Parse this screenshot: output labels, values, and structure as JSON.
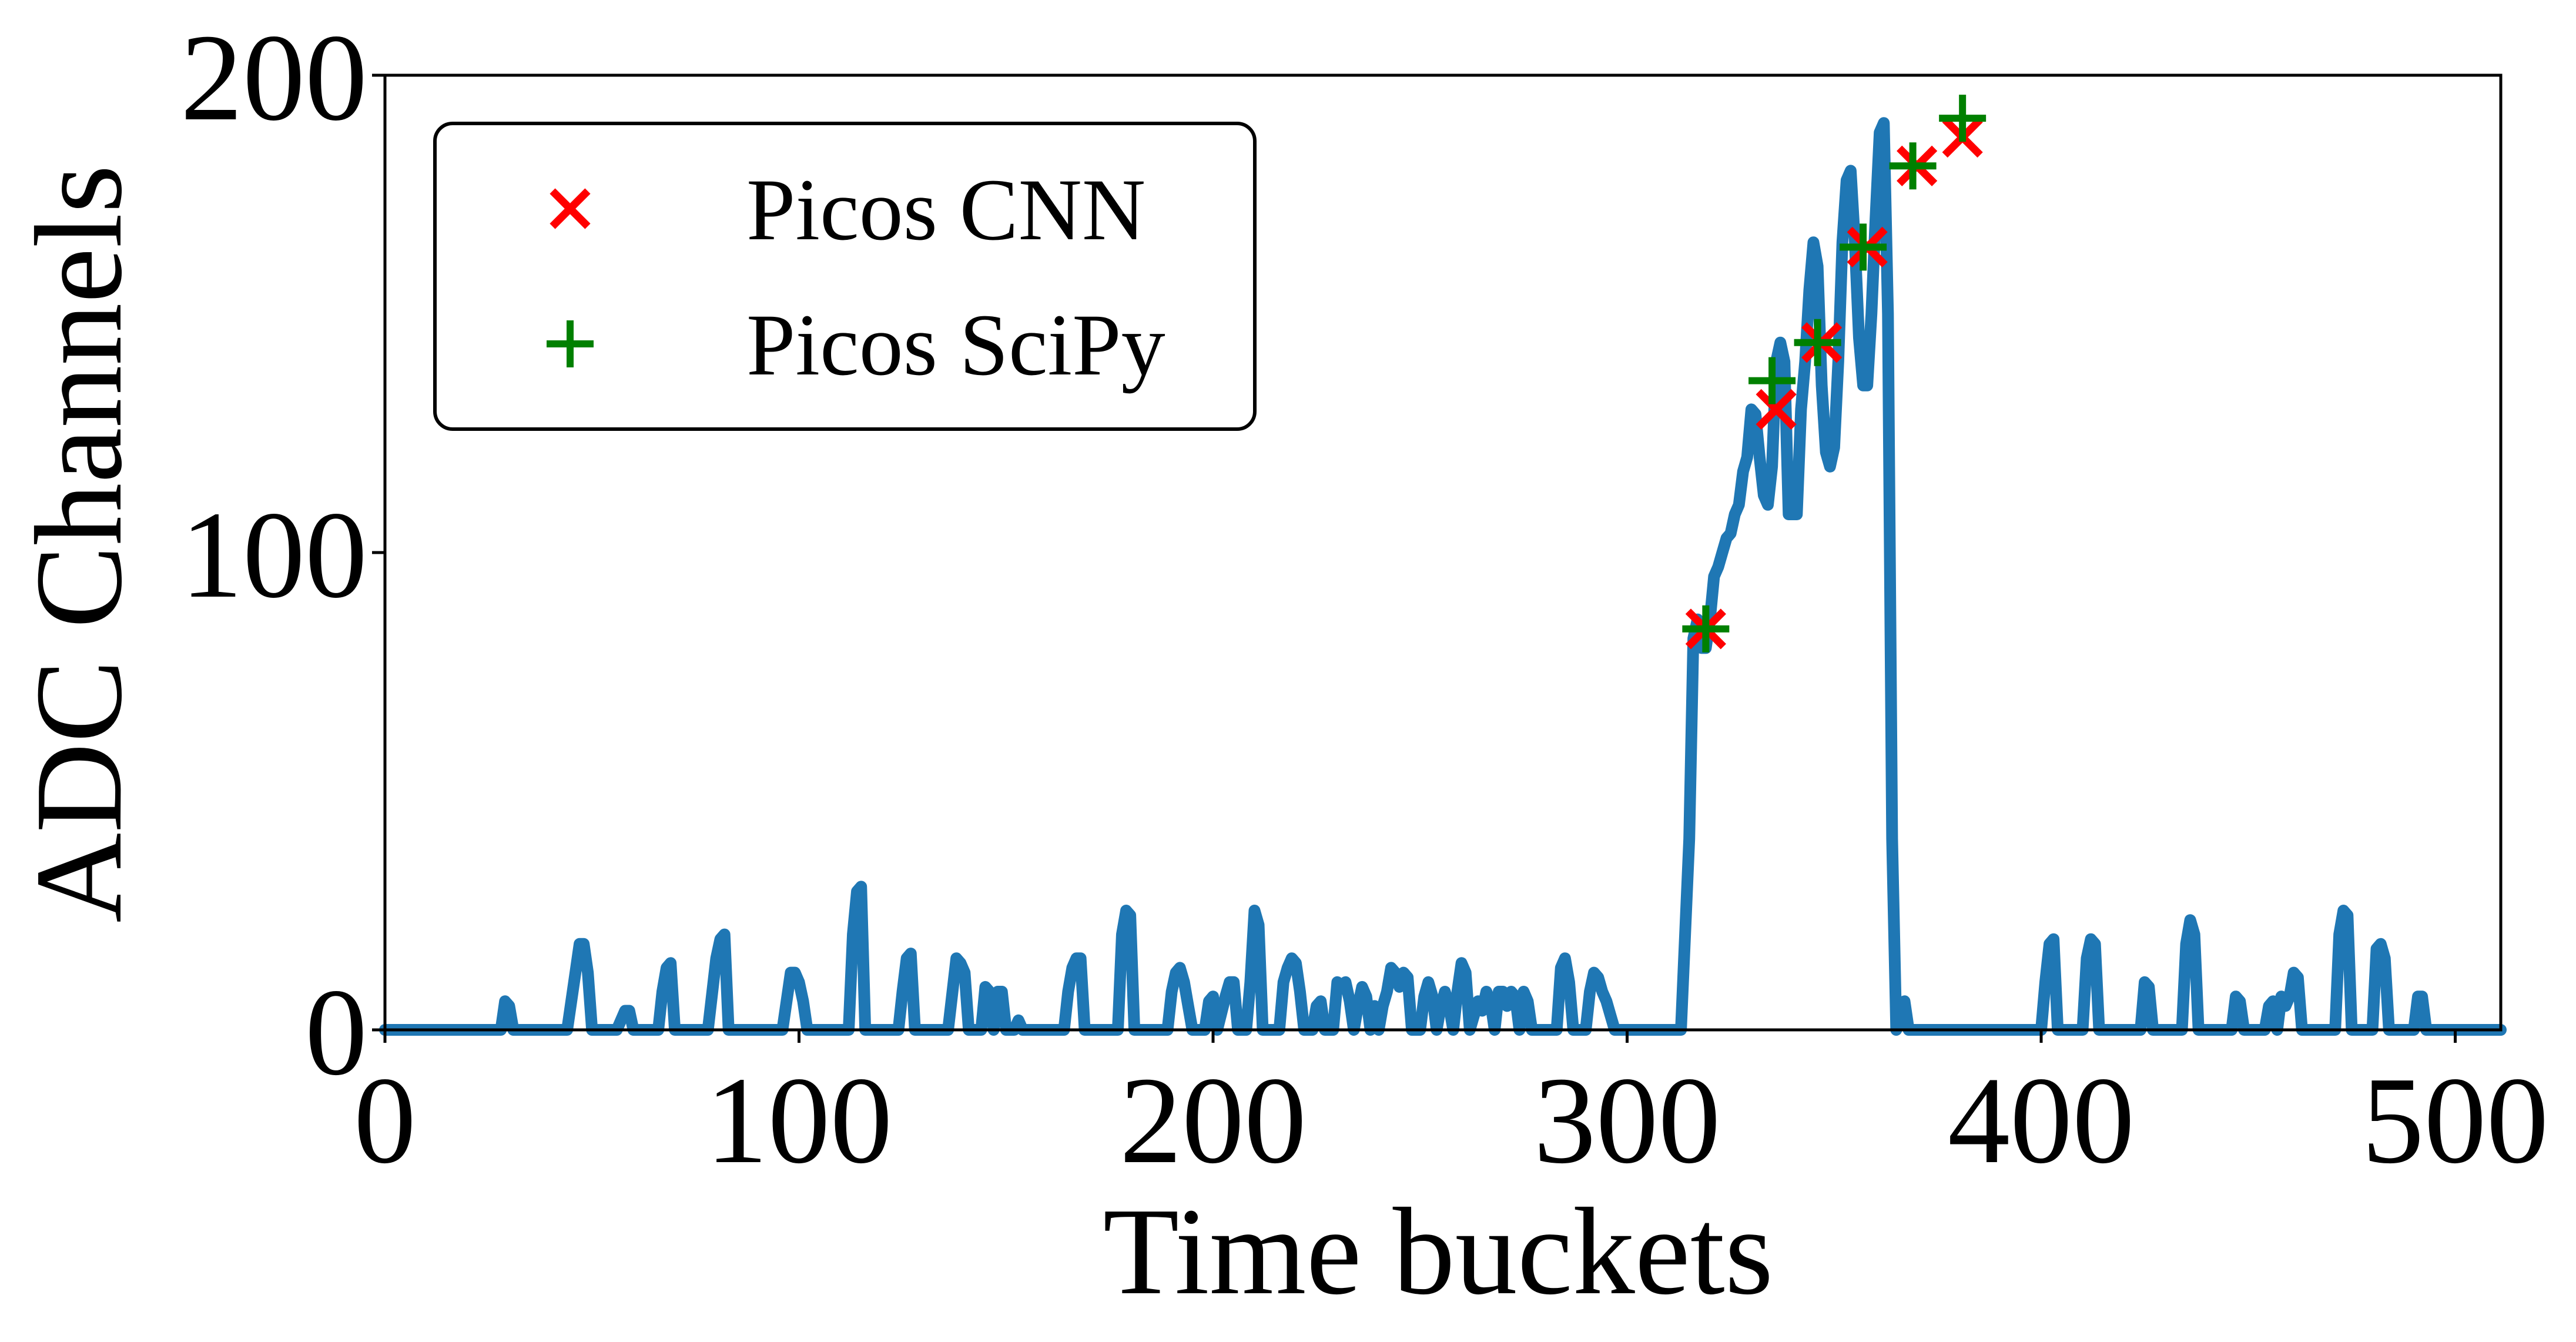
{
  "chart_data": {
    "type": "line",
    "title": "",
    "xlabel": "Time buckets",
    "ylabel": "ADC Channels",
    "xlim": [
      0,
      511
    ],
    "ylim": [
      0,
      200
    ],
    "xticks": [
      0,
      100,
      200,
      300,
      400,
      500
    ],
    "yticks": [
      0,
      100,
      200
    ],
    "grid": false,
    "legend_position": "top-left",
    "series": [
      {
        "kind": "line",
        "color": "#1f77b4",
        "points": [
          [
            0,
            0
          ],
          [
            28,
            0
          ],
          [
            29,
            6
          ],
          [
            30,
            5
          ],
          [
            31,
            0
          ],
          [
            44,
            0
          ],
          [
            46,
            12
          ],
          [
            47,
            18
          ],
          [
            48,
            18
          ],
          [
            49,
            12
          ],
          [
            50,
            0
          ],
          [
            56,
            0
          ],
          [
            58,
            4
          ],
          [
            59,
            4
          ],
          [
            60,
            0
          ],
          [
            66,
            0
          ],
          [
            67,
            8
          ],
          [
            68,
            13
          ],
          [
            69,
            14
          ],
          [
            70,
            0
          ],
          [
            78,
            0
          ],
          [
            80,
            15
          ],
          [
            81,
            19
          ],
          [
            82,
            20
          ],
          [
            83,
            0
          ],
          [
            96,
            0
          ],
          [
            98,
            12
          ],
          [
            99,
            12
          ],
          [
            100,
            10
          ],
          [
            101,
            6
          ],
          [
            102,
            0
          ],
          [
            112,
            0
          ],
          [
            113,
            20
          ],
          [
            114,
            29
          ],
          [
            115,
            30
          ],
          [
            116,
            0
          ],
          [
            124,
            0
          ],
          [
            125,
            8
          ],
          [
            126,
            15
          ],
          [
            127,
            16
          ],
          [
            128,
            0
          ],
          [
            136,
            0
          ],
          [
            138,
            15
          ],
          [
            139,
            14
          ],
          [
            140,
            12
          ],
          [
            141,
            0
          ],
          [
            144,
            0
          ],
          [
            145,
            9
          ],
          [
            146,
            8
          ],
          [
            147,
            0
          ],
          [
            148,
            8
          ],
          [
            149,
            8
          ],
          [
            150,
            0
          ],
          [
            152,
            0
          ],
          [
            153,
            2
          ],
          [
            154,
            0
          ],
          [
            164,
            0
          ],
          [
            165,
            8
          ],
          [
            166,
            13
          ],
          [
            167,
            15
          ],
          [
            168,
            15
          ],
          [
            169,
            0
          ],
          [
            177,
            0
          ],
          [
            178,
            20
          ],
          [
            179,
            25
          ],
          [
            180,
            24
          ],
          [
            181,
            0
          ],
          [
            189,
            0
          ],
          [
            190,
            8
          ],
          [
            191,
            12
          ],
          [
            192,
            13
          ],
          [
            193,
            10
          ],
          [
            194,
            5
          ],
          [
            195,
            0
          ],
          [
            198,
            0
          ],
          [
            199,
            6
          ],
          [
            200,
            7
          ],
          [
            201,
            0
          ],
          [
            203,
            7
          ],
          [
            204,
            10
          ],
          [
            205,
            10
          ],
          [
            206,
            0
          ],
          [
            208,
            0
          ],
          [
            209,
            10
          ],
          [
            210,
            25
          ],
          [
            211,
            22
          ],
          [
            212,
            0
          ],
          [
            216,
            0
          ],
          [
            217,
            10
          ],
          [
            218,
            13
          ],
          [
            219,
            15
          ],
          [
            220,
            14
          ],
          [
            221,
            8
          ],
          [
            222,
            0
          ],
          [
            224,
            0
          ],
          [
            225,
            5
          ],
          [
            226,
            6
          ],
          [
            227,
            0
          ],
          [
            229,
            0
          ],
          [
            230,
            10
          ],
          [
            231,
            9
          ],
          [
            232,
            10
          ],
          [
            233,
            6
          ],
          [
            234,
            0
          ],
          [
            235,
            5
          ],
          [
            236,
            9
          ],
          [
            237,
            7
          ],
          [
            238,
            0
          ],
          [
            239,
            5
          ],
          [
            240,
            0
          ],
          [
            241,
            5
          ],
          [
            242,
            8
          ],
          [
            243,
            13
          ],
          [
            244,
            12
          ],
          [
            245,
            9
          ],
          [
            246,
            12
          ],
          [
            247,
            11
          ],
          [
            248,
            0
          ],
          [
            250,
            0
          ],
          [
            251,
            7
          ],
          [
            252,
            10
          ],
          [
            253,
            7
          ],
          [
            254,
            0
          ],
          [
            255,
            5
          ],
          [
            256,
            8
          ],
          [
            257,
            5
          ],
          [
            258,
            0
          ],
          [
            259,
            8
          ],
          [
            260,
            14
          ],
          [
            261,
            12
          ],
          [
            262,
            0
          ],
          [
            264,
            6
          ],
          [
            265,
            4
          ],
          [
            266,
            8
          ],
          [
            267,
            6
          ],
          [
            268,
            0
          ],
          [
            269,
            8
          ],
          [
            270,
            8
          ],
          [
            271,
            5
          ],
          [
            272,
            8
          ],
          [
            273,
            7
          ],
          [
            274,
            0
          ],
          [
            275,
            8
          ],
          [
            276,
            6
          ],
          [
            277,
            0
          ],
          [
            283,
            0
          ],
          [
            284,
            13
          ],
          [
            285,
            15
          ],
          [
            286,
            10
          ],
          [
            287,
            0
          ],
          [
            290,
            0
          ],
          [
            291,
            8
          ],
          [
            292,
            12
          ],
          [
            293,
            11
          ],
          [
            294,
            8
          ],
          [
            295,
            6
          ],
          [
            296,
            3
          ],
          [
            297,
            0
          ],
          [
            313,
            0
          ],
          [
            315,
            40
          ],
          [
            316,
            82
          ],
          [
            317,
            86
          ],
          [
            318,
            80
          ],
          [
            319,
            80
          ],
          [
            320,
            86
          ],
          [
            321,
            95
          ],
          [
            322,
            97
          ],
          [
            323,
            100
          ],
          [
            324,
            103
          ],
          [
            325,
            104
          ],
          [
            326,
            108
          ],
          [
            327,
            110
          ],
          [
            328,
            117
          ],
          [
            329,
            120
          ],
          [
            330,
            130
          ],
          [
            331,
            129
          ],
          [
            332,
            120
          ],
          [
            333,
            112
          ],
          [
            334,
            110
          ],
          [
            335,
            118
          ],
          [
            336,
            140
          ],
          [
            337,
            144
          ],
          [
            338,
            140
          ],
          [
            339,
            108
          ],
          [
            340,
            108
          ],
          [
            341,
            108
          ],
          [
            342,
            130
          ],
          [
            343,
            140
          ],
          [
            344,
            155
          ],
          [
            345,
            165
          ],
          [
            346,
            160
          ],
          [
            347,
            135
          ],
          [
            348,
            121
          ],
          [
            349,
            118
          ],
          [
            350,
            122
          ],
          [
            351,
            140
          ],
          [
            352,
            165
          ],
          [
            353,
            178
          ],
          [
            354,
            180
          ],
          [
            355,
            165
          ],
          [
            356,
            145
          ],
          [
            357,
            135
          ],
          [
            358,
            135
          ],
          [
            359,
            150
          ],
          [
            360,
            170
          ],
          [
            361,
            188
          ],
          [
            362,
            190
          ],
          [
            363,
            150
          ],
          [
            364,
            40
          ],
          [
            365,
            0
          ],
          [
            366,
            5
          ],
          [
            367,
            6
          ],
          [
            368,
            0
          ],
          [
            400,
            0
          ],
          [
            401,
            10
          ],
          [
            402,
            18
          ],
          [
            403,
            19
          ],
          [
            404,
            0
          ],
          [
            410,
            0
          ],
          [
            411,
            15
          ],
          [
            412,
            19
          ],
          [
            413,
            18
          ],
          [
            414,
            0
          ],
          [
            424,
            0
          ],
          [
            425,
            10
          ],
          [
            426,
            9
          ],
          [
            427,
            0
          ],
          [
            434,
            0
          ],
          [
            435,
            18
          ],
          [
            436,
            23
          ],
          [
            437,
            20
          ],
          [
            438,
            0
          ],
          [
            446,
            0
          ],
          [
            447,
            7
          ],
          [
            448,
            6
          ],
          [
            449,
            0
          ],
          [
            454,
            0
          ],
          [
            455,
            5
          ],
          [
            456,
            6
          ],
          [
            457,
            0
          ],
          [
            458,
            7
          ],
          [
            459,
            5
          ],
          [
            460,
            7
          ],
          [
            461,
            12
          ],
          [
            462,
            11
          ],
          [
            463,
            0
          ],
          [
            471,
            0
          ],
          [
            472,
            20
          ],
          [
            473,
            25
          ],
          [
            474,
            24
          ],
          [
            475,
            0
          ],
          [
            480,
            0
          ],
          [
            481,
            17
          ],
          [
            482,
            18
          ],
          [
            483,
            15
          ],
          [
            484,
            0
          ],
          [
            490,
            0
          ],
          [
            491,
            7
          ],
          [
            492,
            7
          ],
          [
            493,
            0
          ],
          [
            511,
            0
          ]
        ]
      },
      {
        "kind": "scatter",
        "name": "Picos CNN",
        "marker": "x",
        "color": "#ff0000",
        "x": [
          319,
          336,
          347,
          358,
          370,
          381
        ],
        "y": [
          84,
          130,
          144,
          164,
          181,
          187
        ]
      },
      {
        "kind": "scatter",
        "name": "Picos SciPy",
        "marker": "+",
        "color": "#008000",
        "x": [
          319,
          335,
          346,
          357,
          369,
          381
        ],
        "y": [
          84,
          136,
          144,
          164,
          181,
          191
        ]
      }
    ]
  }
}
